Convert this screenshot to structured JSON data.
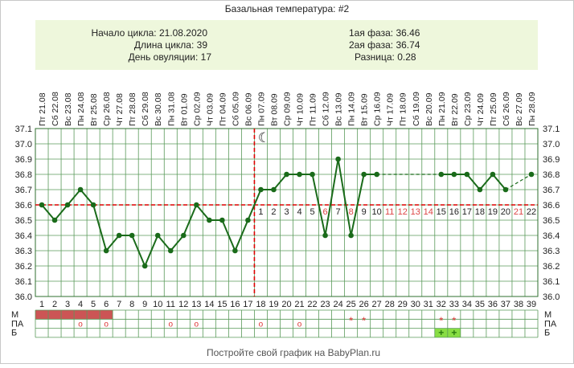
{
  "title": "Базальная температура: #2",
  "info": {
    "cycle_start_label": "Начало цикла:",
    "cycle_start": "21.08.2020",
    "cycle_length_label": "Длина цикла:",
    "cycle_length": "39",
    "ovulation_day_label": "День овуляции:",
    "ovulation_day": "17",
    "phase1_label": "1ая фаза:",
    "phase1": "36.46",
    "phase2_label": "2ая фаза:",
    "phase2": "36.74",
    "diff_label": "Разница:",
    "diff": "0.28"
  },
  "footer": "Постройте свой график на BabyPlan.ru",
  "moon_icon": "☾",
  "colors": {
    "line": "#1a6b1a",
    "marker": "#1a6b1a",
    "grid": "#5a9a5a",
    "reference": "#dd0000",
    "menstruation": "#cc5555",
    "positive": "#88dd44",
    "info_bg": "#eef7dc"
  },
  "chart_data": {
    "type": "line",
    "ylim": [
      36.0,
      37.1
    ],
    "yticks": [
      "36.0",
      "36.1",
      "36.2",
      "36.3",
      "36.4",
      "36.5",
      "36.6",
      "36.7",
      "36.8",
      "36.9",
      "37.0",
      "37.1"
    ],
    "grid": true,
    "dates": [
      "21.08",
      "22.08",
      "23.08",
      "24.08",
      "25.08",
      "26.08",
      "27.08",
      "28.08",
      "29.08",
      "30.08",
      "31.08",
      "01.09",
      "02.09",
      "03.09",
      "04.09",
      "05.09",
      "06.09",
      "07.09",
      "08.09",
      "09.09",
      "10.09",
      "11.09",
      "12.09",
      "13.09",
      "14.09",
      "15.09",
      "16.09",
      "17.09",
      "18.09",
      "19.09",
      "20.09",
      "21.09",
      "22.09",
      "23.09",
      "24.09",
      "25.09",
      "26.09",
      "27.09",
      "28.09"
    ],
    "weekdays": [
      "Пт",
      "Сб",
      "Вс",
      "Пн",
      "Вт",
      "Ср",
      "Чт",
      "Пт",
      "Сб",
      "Вс",
      "Пн",
      "Вт",
      "Ср",
      "Чт",
      "Пт",
      "Сб",
      "Вс",
      "Пн",
      "Вт",
      "Ср",
      "Чт",
      "Пт",
      "Сб",
      "Вс",
      "Пн",
      "Вт",
      "Ср",
      "Чт",
      "Пт",
      "Сб",
      "Вс",
      "Пн",
      "Вт",
      "Ср",
      "Чт",
      "Пт",
      "Сб",
      "Вс",
      "Пн"
    ],
    "days": [
      "1",
      "2",
      "3",
      "4",
      "5",
      "6",
      "7",
      "8",
      "9",
      "10",
      "11",
      "12",
      "13",
      "14",
      "15",
      "16",
      "17",
      "18",
      "19",
      "20",
      "21",
      "22",
      "23",
      "24",
      "25",
      "26",
      "27",
      "28",
      "29",
      "30",
      "31",
      "32",
      "33",
      "34",
      "35",
      "36",
      "37",
      "38",
      "39"
    ],
    "temperatures": [
      36.6,
      36.5,
      36.6,
      36.7,
      36.6,
      36.3,
      36.4,
      36.4,
      36.2,
      36.4,
      36.3,
      36.4,
      36.6,
      36.5,
      36.5,
      36.3,
      36.5,
      36.7,
      36.7,
      36.8,
      36.8,
      36.8,
      36.4,
      36.9,
      36.4,
      36.8,
      36.8,
      null,
      null,
      null,
      null,
      36.8,
      36.8,
      36.8,
      36.7,
      36.8,
      36.7,
      null,
      36.8
    ],
    "solid_segments": [
      [
        1,
        27
      ],
      [
        32,
        37
      ]
    ],
    "dashed_segments": [
      [
        27,
        32
      ],
      [
        37,
        39
      ]
    ],
    "coverline": 36.6,
    "ovulation_day": 17,
    "luteal_numbers": [
      "1",
      "2",
      "3",
      "4",
      "5",
      "6",
      "7",
      "8",
      "9",
      "10",
      "11",
      "12",
      "13",
      "14",
      "15",
      "16",
      "17",
      "18",
      "19",
      "20",
      "21",
      "22"
    ],
    "luteal_start_day": 18,
    "moon_day": 18,
    "rows": {
      "labels": [
        "М",
        "ПА",
        "Б"
      ],
      "menstruation_days": [
        1,
        2,
        3,
        4,
        5,
        6
      ],
      "spotting_days": [
        25,
        26,
        32,
        33
      ],
      "spotting_symbol": "*",
      "intercourse_days": [
        4,
        6,
        11,
        13,
        18,
        21
      ],
      "intercourse_symbol": "o",
      "pregnancy_test_days": [
        32,
        33
      ],
      "pregnancy_test_symbol": "+"
    }
  }
}
